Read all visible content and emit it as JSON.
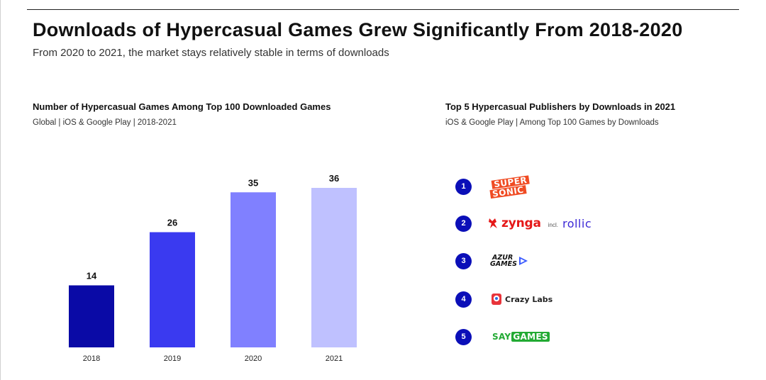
{
  "header": {
    "title": "Downloads of Hypercasual Games Grew Significantly From 2018-2020",
    "subtitle": "From 2020 to 2021, the market stays relatively stable in terms of downloads"
  },
  "left_panel": {
    "title": "Number of Hypercasual Games Among Top 100 Downloaded Games",
    "subtitle": "Global | iOS & Google Play | 2018-2021"
  },
  "right_panel": {
    "title": "Top 5 Hypercasual Publishers by Downloads in 2021",
    "subtitle": "iOS & Google Play | Among Top 100 Games by Downloads",
    "publishers": [
      {
        "rank": "1",
        "name": "SUPER SONIC",
        "logo_lines": [
          "SUPER",
          "SONIC"
        ],
        "brand_color": "#f04b23"
      },
      {
        "rank": "2",
        "name": "zynga",
        "incl_text": "incl.",
        "secondary_name": "rollic",
        "brand_color": "#e51818",
        "secondary_color": "#3b28d6"
      },
      {
        "rank": "3",
        "name": "AZUR GAMES",
        "logo_lines": [
          "AZUR",
          "GAMES"
        ],
        "brand_color": "#3b5bff"
      },
      {
        "rank": "4",
        "name": "Crazy Labs",
        "brand_color": "#e8333a"
      },
      {
        "rank": "5",
        "name": "SAYGAMES",
        "logo_parts": [
          "SAY",
          "GAMES"
        ],
        "brand_color": "#22aa33"
      }
    ]
  },
  "colors": {
    "badge": "#0b0fb8",
    "bars": [
      "#0a0aa6",
      "#3a3af0",
      "#8080ff",
      "#bfc1ff"
    ]
  },
  "chart_data": {
    "type": "bar",
    "title": "Number of Hypercasual Games Among Top 100 Downloaded Games",
    "subtitle": "Global | iOS & Google Play | 2018-2021",
    "categories": [
      "2018",
      "2019",
      "2020",
      "2021"
    ],
    "values": [
      14,
      26,
      35,
      36
    ],
    "data_labels": [
      "14",
      "26",
      "35",
      "36"
    ],
    "xlabel": "",
    "ylabel": "",
    "ylim": [
      0,
      40
    ],
    "grid": false,
    "legend": "none"
  }
}
